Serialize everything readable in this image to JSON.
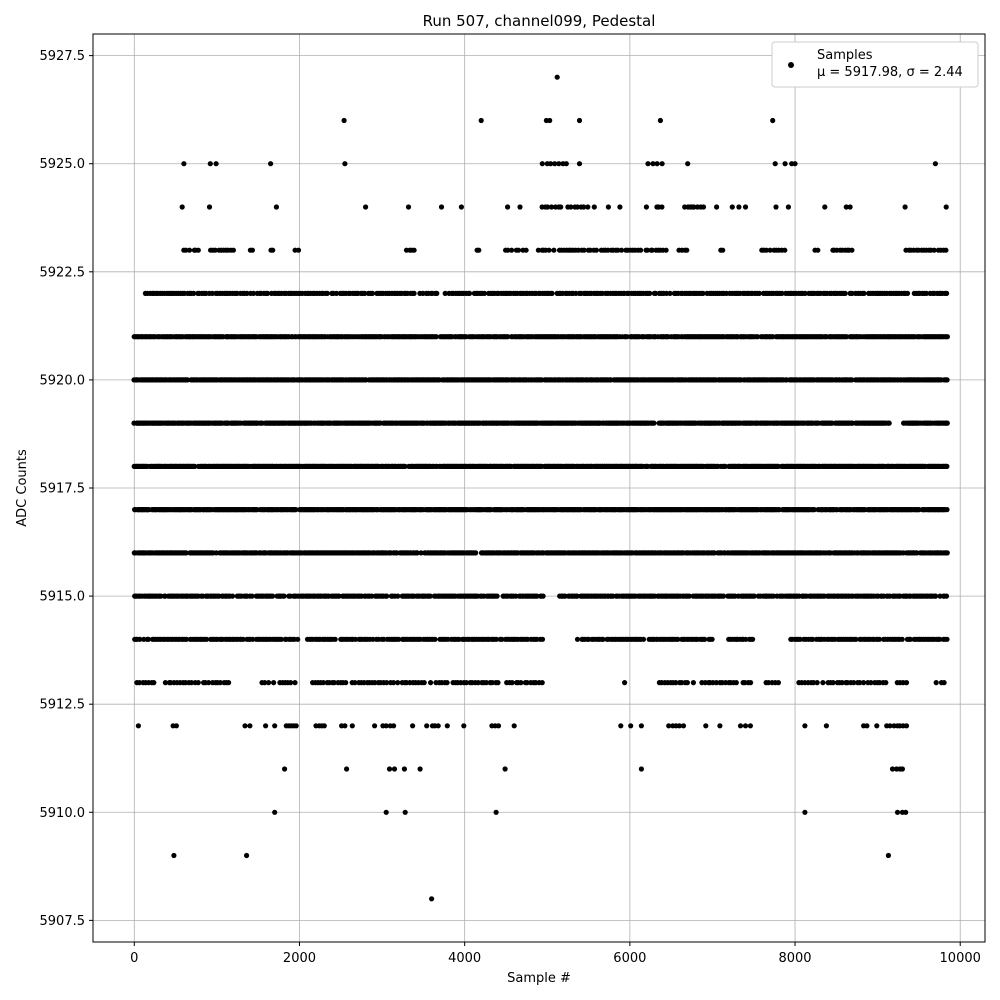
{
  "chart_data": {
    "type": "scatter",
    "title": "Run 507, channel099, Pedestal",
    "xlabel": "Sample #",
    "ylabel": "ADC Counts",
    "xlim": [
      -500,
      10300
    ],
    "ylim": [
      5907.0,
      5928.0
    ],
    "xticks": [
      0,
      2000,
      4000,
      6000,
      8000,
      10000
    ],
    "xtick_labels": [
      "0",
      "2000",
      "4000",
      "6000",
      "8000",
      "10000"
    ],
    "yticks": [
      5907.5,
      5910.0,
      5912.5,
      5915.0,
      5917.5,
      5920.0,
      5922.5,
      5925.0,
      5927.5
    ],
    "ytick_labels": [
      "5907.5",
      "5910.0",
      "5912.5",
      "5915.0",
      "5917.5",
      "5920.0",
      "5922.5",
      "5925.0",
      "5927.5"
    ],
    "grid": true,
    "legend": {
      "placement": "upper right",
      "entries": [
        {
          "label": "Samples",
          "sublabel": "μ = 5917.98, σ = 2.44",
          "marker": "dot"
        }
      ]
    },
    "series": [
      {
        "name": "Samples",
        "color": "#000000",
        "n_samples": 9860,
        "dense_levels": [
          {
            "y": 5913,
            "segments": [
              [
                30,
                1150
              ],
              [
                1550,
                1950
              ],
              [
                2150,
                3800
              ],
              [
                3850,
                4950
              ],
              [
                5900,
                6000
              ],
              [
                6350,
                7500
              ],
              [
                7650,
                7800
              ],
              [
                8050,
                9350
              ],
              [
                9700,
                9830
              ]
            ],
            "step": 35
          },
          {
            "y": 5914,
            "segments": [
              [
                0,
                2000
              ],
              [
                2100,
                4950
              ],
              [
                5350,
                7000
              ],
              [
                7200,
                7500
              ],
              [
                7950,
                9850
              ]
            ],
            "step": 22
          },
          {
            "y": 5915,
            "segments": [
              [
                0,
                5000
              ],
              [
                5150,
                9850
              ]
            ],
            "step": 18
          },
          {
            "y": 5916,
            "segments": [
              [
                0,
                9850
              ]
            ],
            "step": 14
          },
          {
            "y": 5917,
            "segments": [
              [
                0,
                9850
              ]
            ],
            "step": 12
          },
          {
            "y": 5918,
            "segments": [
              [
                0,
                9850
              ]
            ],
            "step": 12
          },
          {
            "y": 5919,
            "segments": [
              [
                0,
                9150
              ],
              [
                9300,
                9850
              ]
            ],
            "step": 13
          },
          {
            "y": 5920,
            "segments": [
              [
                0,
                9850
              ]
            ],
            "step": 12
          },
          {
            "y": 5921,
            "segments": [
              [
                0,
                9850
              ]
            ],
            "step": 14
          },
          {
            "y": 5922,
            "segments": [
              [
                140,
                9850
              ]
            ],
            "step": 25
          },
          {
            "y": 5923,
            "segments": [
              [
                600,
                800
              ],
              [
                900,
                1200
              ],
              [
                1400,
                1450
              ],
              [
                1650,
                1700
              ],
              [
                1950,
                2000
              ],
              [
                3300,
                3400
              ],
              [
                4150,
                4200
              ],
              [
                4500,
                4750
              ],
              [
                4900,
                5900
              ],
              [
                5950,
                6450
              ],
              [
                6600,
                6700
              ],
              [
                7100,
                7150
              ],
              [
                7600,
                7900
              ],
              [
                8250,
                8300
              ],
              [
                8450,
                8700
              ],
              [
                9350,
                9850
              ]
            ],
            "step": 30
          },
          {
            "y": 5924,
            "segments": [
              [
                570,
                610
              ],
              [
                4930,
                5600
              ],
              [
                6200,
                6400
              ],
              [
                6620,
                6900
              ],
              [
                8630,
                8700
              ],
              [
                9340,
                9370
              ]
            ],
            "step": 40
          }
        ],
        "points": [
          [
            50,
            5912
          ],
          [
            470,
            5912
          ],
          [
            510,
            5912
          ],
          [
            1340,
            5912
          ],
          [
            1400,
            5912
          ],
          [
            1590,
            5912
          ],
          [
            1700,
            5912
          ],
          [
            1840,
            5912
          ],
          [
            1870,
            5912
          ],
          [
            1900,
            5912
          ],
          [
            1930,
            5912
          ],
          [
            1960,
            5912
          ],
          [
            2200,
            5912
          ],
          [
            2240,
            5912
          ],
          [
            2270,
            5912
          ],
          [
            2300,
            5912
          ],
          [
            2510,
            5912
          ],
          [
            2550,
            5912
          ],
          [
            2640,
            5912
          ],
          [
            2910,
            5912
          ],
          [
            3010,
            5912
          ],
          [
            3050,
            5912
          ],
          [
            3100,
            5912
          ],
          [
            3140,
            5912
          ],
          [
            3370,
            5912
          ],
          [
            3540,
            5912
          ],
          [
            3610,
            5912
          ],
          [
            3640,
            5912
          ],
          [
            3680,
            5912
          ],
          [
            3790,
            5912
          ],
          [
            3990,
            5912
          ],
          [
            4330,
            5912
          ],
          [
            4370,
            5912
          ],
          [
            4410,
            5912
          ],
          [
            4600,
            5912
          ],
          [
            5890,
            5912
          ],
          [
            6010,
            5912
          ],
          [
            6140,
            5912
          ],
          [
            6470,
            5912
          ],
          [
            6520,
            5912
          ],
          [
            6560,
            5912
          ],
          [
            6600,
            5912
          ],
          [
            6650,
            5912
          ],
          [
            6920,
            5912
          ],
          [
            7090,
            5912
          ],
          [
            7340,
            5912
          ],
          [
            7400,
            5912
          ],
          [
            7460,
            5912
          ],
          [
            8120,
            5912
          ],
          [
            8380,
            5912
          ],
          [
            8830,
            5912
          ],
          [
            8870,
            5912
          ],
          [
            8990,
            5912
          ],
          [
            9110,
            5912
          ],
          [
            9150,
            5912
          ],
          [
            9200,
            5912
          ],
          [
            9240,
            5912
          ],
          [
            9270,
            5912
          ],
          [
            9310,
            5912
          ],
          [
            9350,
            5912
          ],
          [
            1820,
            5911
          ],
          [
            2570,
            5911
          ],
          [
            3090,
            5911
          ],
          [
            3150,
            5911
          ],
          [
            3270,
            5911
          ],
          [
            3460,
            5911
          ],
          [
            4490,
            5911
          ],
          [
            6140,
            5911
          ],
          [
            9180,
            5911
          ],
          [
            9230,
            5911
          ],
          [
            9270,
            5911
          ],
          [
            9300,
            5911
          ],
          [
            1700,
            5910
          ],
          [
            3050,
            5910
          ],
          [
            3280,
            5910
          ],
          [
            4380,
            5910
          ],
          [
            8120,
            5910
          ],
          [
            9240,
            5910
          ],
          [
            9300,
            5910
          ],
          [
            9340,
            5910
          ],
          [
            480,
            5909
          ],
          [
            1360,
            5909
          ],
          [
            9130,
            5909
          ],
          [
            3600,
            5908
          ],
          [
            600,
            5925
          ],
          [
            920,
            5925
          ],
          [
            990,
            5925
          ],
          [
            1650,
            5925
          ],
          [
            2550,
            5925
          ],
          [
            4940,
            5925
          ],
          [
            5000,
            5925
          ],
          [
            5040,
            5925
          ],
          [
            5090,
            5925
          ],
          [
            5140,
            5925
          ],
          [
            5190,
            5925
          ],
          [
            5230,
            5925
          ],
          [
            5390,
            5925
          ],
          [
            6220,
            5925
          ],
          [
            6280,
            5925
          ],
          [
            6330,
            5925
          ],
          [
            6390,
            5925
          ],
          [
            6700,
            5925
          ],
          [
            7760,
            5925
          ],
          [
            7880,
            5925
          ],
          [
            7960,
            5925
          ],
          [
            8000,
            5925
          ],
          [
            9700,
            5925
          ],
          [
            910,
            5924
          ],
          [
            1720,
            5924
          ],
          [
            2800,
            5924
          ],
          [
            3320,
            5924
          ],
          [
            3720,
            5924
          ],
          [
            3960,
            5924
          ],
          [
            4520,
            5924
          ],
          [
            4670,
            5924
          ],
          [
            5740,
            5924
          ],
          [
            5880,
            5924
          ],
          [
            6730,
            5924
          ],
          [
            6770,
            5924
          ],
          [
            7050,
            5924
          ],
          [
            7240,
            5924
          ],
          [
            7320,
            5924
          ],
          [
            7400,
            5924
          ],
          [
            7770,
            5924
          ],
          [
            7920,
            5924
          ],
          [
            8360,
            5924
          ],
          [
            9830,
            5924
          ],
          [
            2540,
            5926
          ],
          [
            4200,
            5926
          ],
          [
            4990,
            5926
          ],
          [
            5030,
            5926
          ],
          [
            5390,
            5926
          ],
          [
            6370,
            5926
          ],
          [
            7730,
            5926
          ],
          [
            5120,
            5927
          ]
        ]
      }
    ]
  }
}
